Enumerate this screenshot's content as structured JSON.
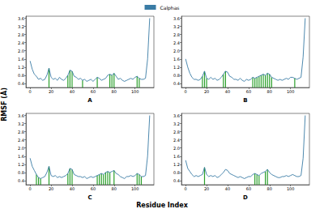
{
  "xlabel": "Residue Index",
  "ylabel": "RMSF (Å)",
  "legend": "top",
  "chart_data": [
    {
      "type": "line",
      "title": "A",
      "grid": false,
      "xlim": [
        -4,
        118
      ],
      "xticks": [
        0,
        20,
        40,
        60,
        80,
        100
      ],
      "ylim": [
        0.2,
        3.7
      ],
      "yticks": [
        0.4,
        0.8,
        1.2,
        1.6,
        {
          "value": 2,
          "label": "2.0"
        },
        2.4,
        2.8,
        3.2,
        3.6
      ],
      "x": [
        0,
        2,
        4,
        6,
        8,
        10,
        12,
        14,
        16,
        18,
        20,
        22,
        24,
        26,
        28,
        30,
        32,
        34,
        36,
        38,
        40,
        42,
        44,
        46,
        48,
        50,
        52,
        54,
        56,
        58,
        60,
        62,
        64,
        66,
        68,
        70,
        72,
        74,
        76,
        78,
        80,
        82,
        84,
        86,
        88,
        90,
        92,
        94,
        96,
        98,
        100,
        102,
        104,
        106,
        108,
        110,
        112,
        114
      ],
      "series": [
        {
          "name": "Calphas",
          "color": "#3a7ca5",
          "values": [
            1.5,
            1.1,
            0.85,
            0.75,
            0.6,
            0.65,
            0.55,
            0.6,
            0.8,
            1.15,
            0.7,
            0.6,
            0.65,
            0.55,
            0.7,
            0.6,
            0.55,
            0.65,
            0.8,
            1.05,
            1.0,
            0.75,
            0.7,
            0.6,
            0.65,
            0.55,
            0.6,
            0.5,
            0.55,
            0.6,
            0.5,
            0.6,
            0.7,
            0.65,
            0.55,
            0.6,
            0.65,
            0.8,
            0.85,
            0.8,
            0.9,
            0.75,
            0.6,
            0.65,
            0.55,
            0.5,
            0.55,
            0.6,
            0.65,
            0.6,
            0.7,
            0.75,
            0.65,
            0.6,
            0.6,
            0.65,
            1.6,
            3.6
          ]
        }
      ],
      "contacts": {
        "color": "#2ca02c",
        "x": [
          18,
          36,
          38,
          40,
          50,
          64,
          76,
          78,
          80,
          102,
          104
        ]
      }
    },
    {
      "type": "line",
      "title": "B",
      "grid": false,
      "xlim": [
        -4,
        118
      ],
      "xticks": [
        0,
        20,
        40,
        60,
        80,
        100
      ],
      "ylim": [
        0.2,
        3.7
      ],
      "yticks": [
        0.4,
        0.8,
        1.2,
        1.6,
        {
          "value": 2,
          "label": "2.0"
        },
        2.4,
        2.8,
        3.2,
        3.6
      ],
      "x": [
        0,
        2,
        4,
        6,
        8,
        10,
        12,
        14,
        16,
        18,
        20,
        22,
        24,
        26,
        28,
        30,
        32,
        34,
        36,
        38,
        40,
        42,
        44,
        46,
        48,
        50,
        52,
        54,
        56,
        58,
        60,
        62,
        64,
        66,
        68,
        70,
        72,
        74,
        76,
        78,
        80,
        82,
        84,
        86,
        88,
        90,
        92,
        94,
        96,
        98,
        100,
        102,
        104,
        106,
        108,
        110,
        112,
        114
      ],
      "series": [
        {
          "name": "Calphas",
          "color": "#3a7ca5",
          "values": [
            1.6,
            1.2,
            0.9,
            0.7,
            0.6,
            0.6,
            0.55,
            0.6,
            0.75,
            1.0,
            0.65,
            0.6,
            0.7,
            0.6,
            0.65,
            0.55,
            0.6,
            0.7,
            0.85,
            1.0,
            0.95,
            0.75,
            0.7,
            0.6,
            0.6,
            0.55,
            0.65,
            0.55,
            0.5,
            0.6,
            0.55,
            0.6,
            0.7,
            0.65,
            0.7,
            0.75,
            0.8,
            0.85,
            0.8,
            0.9,
            0.85,
            0.7,
            0.65,
            0.6,
            0.55,
            0.6,
            0.55,
            0.6,
            0.65,
            0.6,
            0.7,
            0.7,
            0.65,
            0.6,
            0.65,
            0.7,
            1.7,
            3.6
          ]
        }
      ],
      "contacts": {
        "color": "#2ca02c",
        "x": [
          16,
          18,
          20,
          36,
          38,
          64,
          66,
          68,
          70,
          72,
          74,
          76,
          78,
          80,
          82,
          104
        ]
      }
    },
    {
      "type": "line",
      "title": "C",
      "grid": false,
      "xlim": [
        -4,
        118
      ],
      "xticks": [
        0,
        20,
        40,
        60,
        80,
        100
      ],
      "ylim": [
        0.2,
        3.7
      ],
      "yticks": [
        0.4,
        0.8,
        1.2,
        1.6,
        {
          "value": 2,
          "label": "2.0"
        },
        2.4,
        2.8,
        3.2,
        3.6
      ],
      "x": [
        0,
        2,
        4,
        6,
        8,
        10,
        12,
        14,
        16,
        18,
        20,
        22,
        24,
        26,
        28,
        30,
        32,
        34,
        36,
        38,
        40,
        42,
        44,
        46,
        48,
        50,
        52,
        54,
        56,
        58,
        60,
        62,
        64,
        66,
        68,
        70,
        72,
        74,
        76,
        78,
        80,
        82,
        84,
        86,
        88,
        90,
        92,
        94,
        96,
        98,
        100,
        102,
        104,
        106,
        108,
        110,
        112,
        114
      ],
      "series": [
        {
          "name": "Calphas",
          "color": "#3a7ca5",
          "values": [
            1.5,
            1.1,
            0.9,
            0.7,
            0.55,
            0.5,
            0.55,
            0.6,
            0.8,
            1.1,
            0.65,
            0.6,
            0.65,
            0.55,
            0.6,
            0.55,
            0.6,
            0.65,
            0.75,
            1.0,
            0.95,
            0.7,
            0.65,
            0.6,
            0.6,
            0.55,
            0.6,
            0.5,
            0.55,
            0.6,
            0.55,
            0.6,
            0.65,
            0.7,
            0.75,
            0.7,
            0.8,
            0.85,
            0.8,
            0.85,
            0.9,
            0.75,
            0.7,
            0.6,
            0.55,
            0.5,
            0.6,
            0.6,
            0.65,
            0.6,
            0.65,
            0.75,
            0.7,
            0.6,
            0.6,
            0.65,
            1.6,
            3.6
          ]
        }
      ],
      "contacts": {
        "color": "#2ca02c",
        "x": [
          6,
          8,
          10,
          18,
          36,
          38,
          40,
          64,
          66,
          68,
          70,
          72,
          74,
          76,
          80,
          102,
          104,
          106
        ]
      }
    },
    {
      "type": "line",
      "title": "D",
      "grid": false,
      "xlim": [
        -4,
        118
      ],
      "xticks": [
        0,
        20,
        40,
        60,
        80,
        100
      ],
      "ylim": [
        0.2,
        3.7
      ],
      "yticks": [
        0.4,
        0.8,
        1.2,
        1.6,
        {
          "value": 2,
          "label": "2.0"
        },
        2.4,
        2.8,
        3.2,
        3.6
      ],
      "x": [
        0,
        2,
        4,
        6,
        8,
        10,
        12,
        14,
        16,
        18,
        20,
        22,
        24,
        26,
        28,
        30,
        32,
        34,
        36,
        38,
        40,
        42,
        44,
        46,
        48,
        50,
        52,
        54,
        56,
        58,
        60,
        62,
        64,
        66,
        68,
        70,
        72,
        74,
        76,
        78,
        80,
        82,
        84,
        86,
        88,
        90,
        92,
        94,
        96,
        98,
        100,
        102,
        104,
        106,
        108,
        110,
        112,
        114
      ],
      "series": [
        {
          "name": "Calphas",
          "color": "#3a7ca5",
          "values": [
            1.4,
            1.0,
            0.85,
            0.7,
            0.6,
            0.65,
            0.6,
            0.65,
            0.7,
            1.05,
            0.7,
            0.6,
            0.65,
            0.6,
            0.65,
            0.55,
            0.6,
            0.7,
            0.8,
            0.95,
            0.9,
            0.75,
            0.7,
            0.65,
            0.6,
            0.55,
            0.6,
            0.55,
            0.5,
            0.55,
            0.6,
            0.6,
            0.7,
            0.75,
            0.7,
            0.65,
            0.75,
            0.8,
            0.85,
            0.95,
            0.8,
            0.7,
            0.65,
            0.6,
            0.55,
            0.55,
            0.6,
            0.6,
            0.65,
            0.6,
            0.65,
            0.7,
            0.65,
            0.6,
            0.6,
            0.65,
            1.5,
            3.6
          ]
        }
      ],
      "contacts": {
        "color": "#2ca02c",
        "x": [
          18,
          66,
          68,
          70,
          76,
          78
        ]
      }
    }
  ]
}
